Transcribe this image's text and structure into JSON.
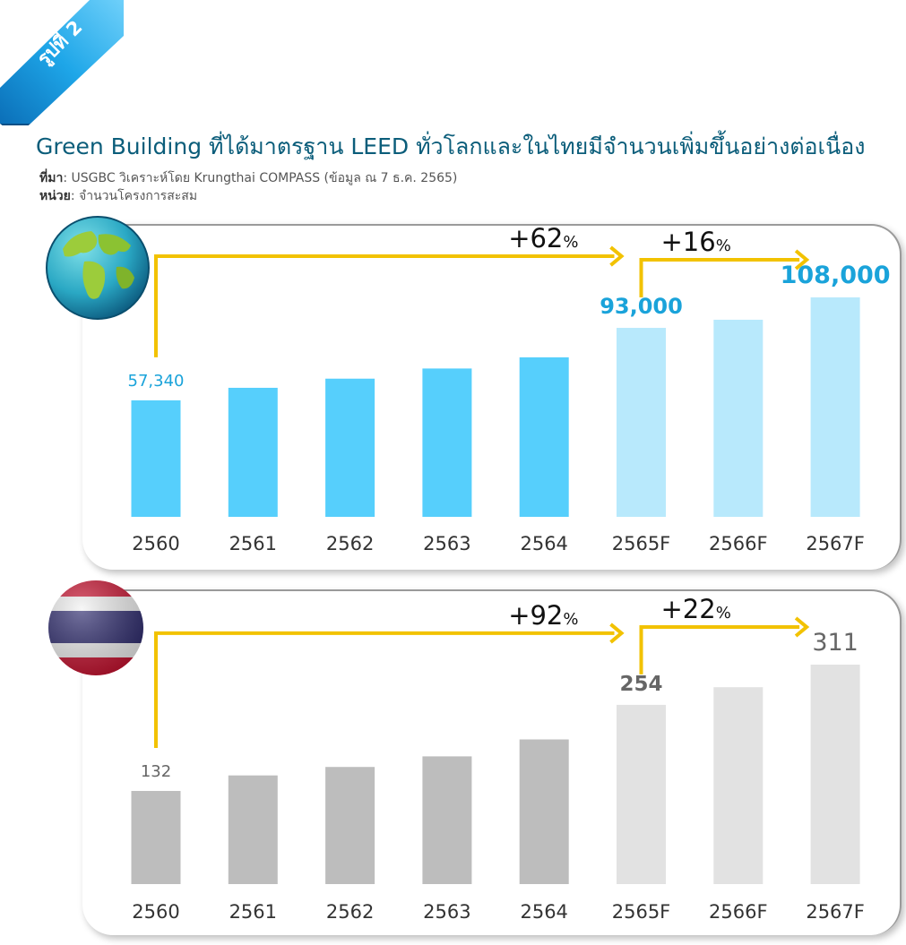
{
  "figure_tag": "รูปที่ 2",
  "title": "Green Building ที่ได้มาตรฐาน LEED ทั่วโลกและในไทยมีจำนวนเพิ่มขึ้นอย่างต่อเนื่อง",
  "source_label": "ที่มา",
  "source_text": ": USGBC วิเคราะห์โดย Krungthai COMPASS (ข้อมูล ณ 7 ธ.ค. 2565)",
  "unit_label": "หน่วย",
  "unit_text": ": จำนวนโครงการสะสม",
  "icons": [
    "globe-icon",
    "thailand-flag-icon"
  ],
  "colors": {
    "title": "#0b5d7a",
    "world_actual": "#56cffc",
    "world_forecast": "#b8e9fc",
    "world_label": "#1aa3da",
    "thai_actual": "#bdbdbd",
    "thai_forecast": "#e2e2e2",
    "thai_label": "#666666",
    "arrow": "#f2c200"
  },
  "chart_data": [
    {
      "type": "bar",
      "categories": [
        "2560",
        "2561",
        "2562",
        "2563",
        "2564",
        "2565F",
        "2566F",
        "2567F"
      ],
      "values": [
        57340,
        63500,
        68000,
        73000,
        78500,
        93000,
        97000,
        108000
      ],
      "forecast_from_index": 5,
      "data_labels": {
        "0": "57,340",
        "5": "93,000",
        "7": "108,000"
      },
      "annotations": [
        {
          "from": "2560",
          "to": "2565F",
          "pct": "+62",
          "pct_sign": "%"
        },
        {
          "from": "2565F",
          "to": "2567F",
          "pct": "+16",
          "pct_sign": "%"
        }
      ],
      "ylim": [
        0,
        115000
      ]
    },
    {
      "type": "bar",
      "categories": [
        "2560",
        "2561",
        "2562",
        "2563",
        "2564",
        "2565F",
        "2566F",
        "2567F"
      ],
      "values": [
        132,
        154,
        166,
        181,
        205,
        254,
        279,
        311
      ],
      "forecast_from_index": 5,
      "data_labels": {
        "0": "132",
        "5": "254",
        "7": "311"
      },
      "annotations": [
        {
          "from": "2560",
          "to": "2565F",
          "pct": "+92",
          "pct_sign": "%"
        },
        {
          "from": "2565F",
          "to": "2567F",
          "pct": "+22",
          "pct_sign": "%"
        }
      ],
      "ylim": [
        0,
        330
      ]
    }
  ]
}
